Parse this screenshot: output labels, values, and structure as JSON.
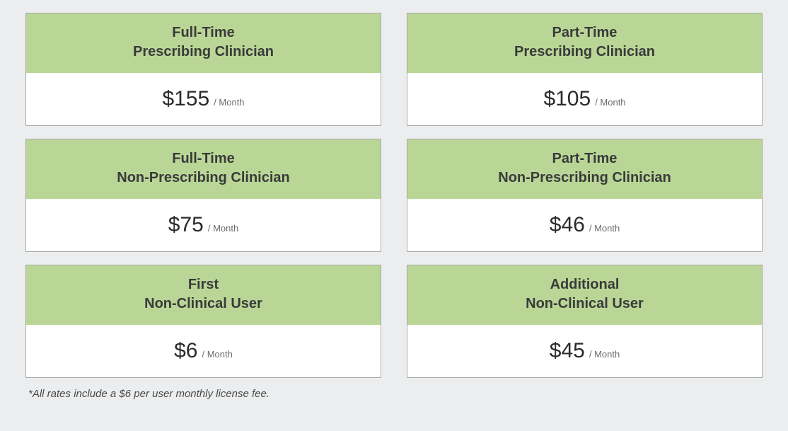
{
  "styling": {
    "page_background": "#ecedee",
    "card_border_color": "#a9a9a9",
    "header_background": "#b9d696",
    "body_background": "#ffffff",
    "title_color": "#3a3a3a",
    "price_color": "#2b2b2b",
    "period_color": "#6b6b6b",
    "footnote_color": "#4a4a4a",
    "title_fontsize": 20,
    "price_fontsize": 30,
    "period_fontsize": 13,
    "footnote_fontsize": 15,
    "grid_columns": 2,
    "grid_row_gap": 18,
    "grid_col_gap": 36
  },
  "cards": [
    {
      "title_line1": "Full-Time",
      "title_line2": "Prescribing Clinician",
      "price": "$155",
      "period": "/ Month"
    },
    {
      "title_line1": "Part-Time",
      "title_line2": "Prescribing Clinician",
      "price": "$105",
      "period": "/ Month"
    },
    {
      "title_line1": "Full-Time",
      "title_line2": "Non-Prescribing Clinician",
      "price": "$75",
      "period": "/ Month"
    },
    {
      "title_line1": "Part-Time",
      "title_line2": "Non-Prescribing Clinician",
      "price": "$46",
      "period": "/ Month"
    },
    {
      "title_line1": "First",
      "title_line2": "Non-Clinical User",
      "price": "$6",
      "period": "/ Month"
    },
    {
      "title_line1": "Additional",
      "title_line2": "Non-Clinical User",
      "price": "$45",
      "period": "/ Month"
    }
  ],
  "footnote": "*All rates include a $6 per user monthly license fee."
}
